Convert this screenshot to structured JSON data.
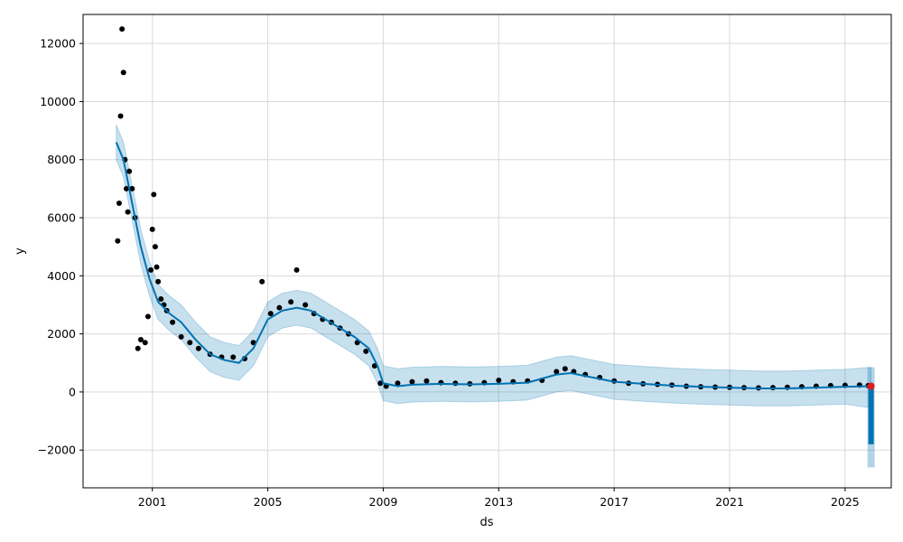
{
  "chart_data": {
    "type": "scatter",
    "title": "",
    "xlabel": "ds",
    "ylabel": "y",
    "xlim": [
      1998.6,
      2026.6
    ],
    "ylim": [
      -3300,
      13000
    ],
    "x_ticks": [
      2001,
      2005,
      2009,
      2013,
      2017,
      2021,
      2025
    ],
    "x_tick_labels": [
      "2001",
      "2005",
      "2009",
      "2013",
      "2017",
      "2021",
      "2025"
    ],
    "y_ticks": [
      -2000,
      0,
      2000,
      4000,
      6000,
      8000,
      10000,
      12000
    ],
    "y_tick_labels": [
      "−2000",
      "0",
      "2000",
      "4000",
      "6000",
      "8000",
      "10000",
      "12000"
    ],
    "grid": true,
    "colors": {
      "observed": "#000000",
      "forecast": "#0072B2",
      "interval": "#0072B2",
      "highlight": "#e31a1c"
    },
    "series": [
      {
        "kind": "observed",
        "x": [
          1999.8,
          1999.85,
          1999.9,
          1999.95,
          2000.0,
          2000.05,
          2000.1,
          2000.15,
          2000.2,
          2000.3,
          2000.4,
          2000.5,
          2000.6,
          2000.75,
          2000.85,
          2000.95,
          2001.0,
          2001.05,
          2001.1,
          2001.15,
          2001.2,
          2001.3,
          2001.4,
          2001.5,
          2001.7,
          2002.0,
          2002.3,
          2002.6,
          2003.0,
          2003.4,
          2003.8,
          2004.2,
          2004.5,
          2004.8,
          2005.1,
          2005.4,
          2005.8,
          2006.0,
          2006.3,
          2006.6,
          2006.9,
          2007.2,
          2007.5,
          2007.8,
          2008.1,
          2008.4,
          2008.7,
          2008.9,
          2009.1,
          2009.5,
          2010.0,
          2010.5,
          2011.0,
          2011.5,
          2012.0,
          2012.5,
          2013.0,
          2013.5,
          2014.0,
          2014.5,
          2015.0,
          2015.3,
          2015.6,
          2016.0,
          2016.5,
          2017.0,
          2017.5,
          2018.0,
          2018.5,
          2019.0,
          2019.5,
          2020.0,
          2020.5,
          2021.0,
          2021.5,
          2022.0,
          2022.5,
          2023.0,
          2023.5,
          2024.0,
          2024.5,
          2025.0,
          2025.5,
          2025.8
        ],
        "y": [
          5200,
          6500,
          9500,
          12500,
          11000,
          8000,
          7000,
          6200,
          7600,
          7000,
          6000,
          1500,
          1800,
          1700,
          2600,
          4200,
          5600,
          6800,
          5000,
          4300,
          3800,
          3200,
          3000,
          2800,
          2400,
          1900,
          1700,
          1500,
          1300,
          1200,
          1200,
          1150,
          1700,
          3800,
          2700,
          2900,
          3100,
          4200,
          3000,
          2700,
          2500,
          2400,
          2200,
          2000,
          1700,
          1400,
          900,
          300,
          200,
          300,
          350,
          380,
          320,
          300,
          280,
          320,
          400,
          350,
          380,
          400,
          700,
          800,
          700,
          600,
          500,
          380,
          300,
          280,
          260,
          240,
          200,
          180,
          170,
          160,
          150,
          140,
          150,
          160,
          180,
          200,
          220,
          230,
          240,
          220
        ]
      },
      {
        "kind": "forecast",
        "x": [
          1999.75,
          2000.0,
          2000.3,
          2000.6,
          2000.9,
          2001.2,
          2001.6,
          2002.0,
          2002.5,
          2003.0,
          2003.5,
          2004.0,
          2004.5,
          2005.0,
          2005.5,
          2006.0,
          2006.5,
          2007.0,
          2007.5,
          2008.0,
          2008.5,
          2008.8,
          2009.0,
          2009.5,
          2010.0,
          2011.0,
          2012.0,
          2013.0,
          2014.0,
          2015.0,
          2015.5,
          2016.0,
          2017.0,
          2018.0,
          2019.0,
          2020.0,
          2021.0,
          2022.0,
          2023.0,
          2024.0,
          2025.0,
          2025.9
        ],
        "y": [
          8600,
          8000,
          6500,
          5000,
          3900,
          3100,
          2700,
          2400,
          1800,
          1300,
          1100,
          1000,
          1500,
          2500,
          2800,
          2900,
          2800,
          2500,
          2200,
          1900,
          1500,
          900,
          300,
          200,
          250,
          280,
          260,
          280,
          320,
          600,
          650,
          550,
          350,
          280,
          220,
          180,
          150,
          120,
          120,
          150,
          180,
          200
        ]
      },
      {
        "kind": "interval_upper",
        "x": [
          1999.75,
          2000.0,
          2000.3,
          2000.6,
          2000.9,
          2001.2,
          2001.6,
          2002.0,
          2002.5,
          2003.0,
          2003.5,
          2004.0,
          2004.5,
          2005.0,
          2005.5,
          2006.0,
          2006.5,
          2007.0,
          2007.5,
          2008.0,
          2008.5,
          2008.8,
          2009.0,
          2009.5,
          2010.0,
          2011.0,
          2012.0,
          2013.0,
          2014.0,
          2015.0,
          2015.5,
          2016.0,
          2017.0,
          2018.0,
          2019.0,
          2020.0,
          2021.0,
          2022.0,
          2023.0,
          2024.0,
          2025.0,
          2025.9
        ],
        "y": [
          9200,
          8600,
          7100,
          5600,
          4500,
          3700,
          3300,
          3000,
          2400,
          1900,
          1700,
          1600,
          2100,
          3100,
          3400,
          3500,
          3400,
          3100,
          2800,
          2500,
          2100,
          1500,
          900,
          800,
          850,
          880,
          860,
          880,
          920,
          1200,
          1250,
          1150,
          950,
          880,
          820,
          780,
          750,
          720,
          720,
          750,
          780,
          850
        ]
      },
      {
        "kind": "interval_lower",
        "x": [
          1999.75,
          2000.0,
          2000.3,
          2000.6,
          2000.9,
          2001.2,
          2001.6,
          2002.0,
          2002.5,
          2003.0,
          2003.5,
          2004.0,
          2004.5,
          2005.0,
          2005.5,
          2006.0,
          2006.5,
          2007.0,
          2007.5,
          2008.0,
          2008.5,
          2008.8,
          2009.0,
          2009.5,
          2010.0,
          2011.0,
          2012.0,
          2013.0,
          2014.0,
          2015.0,
          2015.5,
          2016.0,
          2017.0,
          2018.0,
          2019.0,
          2020.0,
          2021.0,
          2022.0,
          2023.0,
          2024.0,
          2025.0,
          2025.9
        ],
        "y": [
          8000,
          7400,
          5900,
          4400,
          3300,
          2500,
          2100,
          1800,
          1200,
          700,
          500,
          400,
          900,
          1900,
          2200,
          2300,
          2200,
          1900,
          1600,
          1300,
          900,
          300,
          -300,
          -400,
          -350,
          -320,
          -340,
          -320,
          -280,
          0,
          50,
          -50,
          -250,
          -320,
          -380,
          -420,
          -450,
          -480,
          -480,
          -450,
          -420,
          -550
        ]
      },
      {
        "kind": "forecast_drop",
        "x": [
          2025.9,
          2025.9
        ],
        "y": [
          200,
          -1800
        ]
      },
      {
        "kind": "interval_drop",
        "x": [
          2025.9,
          2025.9
        ],
        "y": [
          850,
          -2600
        ]
      },
      {
        "kind": "highlight_point",
        "x": [
          2025.9
        ],
        "y": [
          200
        ]
      }
    ]
  }
}
